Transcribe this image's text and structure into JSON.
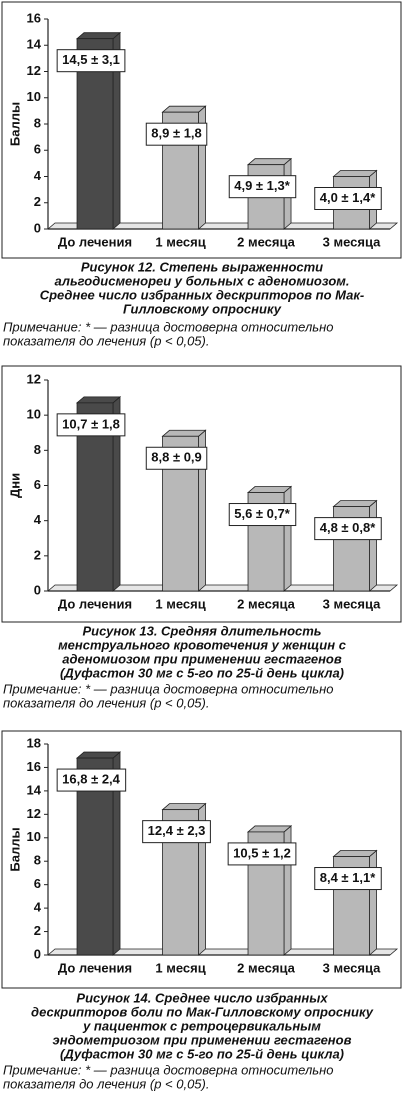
{
  "chart_data": [
    {
      "type": "bar",
      "y_label": "Баллы",
      "categories": [
        "До лечения",
        "1 месяц",
        "2 месяца",
        "3 месяца"
      ],
      "values": [
        14.5,
        8.9,
        4.9,
        4.0
      ],
      "value_labels": [
        "14,5 ± 3,1",
        "8,9 ± 1,8",
        "4,9 ± 1,3*",
        "4,0 ± 1,4*"
      ],
      "colors": [
        "#4a4a4a",
        "#b8b8b8",
        "#b8b8b8",
        "#b8b8b8"
      ],
      "ylim": [
        0,
        16
      ],
      "yticks": [
        0,
        2,
        4,
        6,
        8,
        10,
        12,
        14,
        16
      ],
      "caption": [
        "Рисунок 12. Степень выраженности",
        "альгодисменореи у больных с аденомиозом.",
        "Среднее число избранных дескрипторов по Мак-",
        "Гилловскому опроснику"
      ],
      "note": [
        "Примечание: * — разница достоверна относительно",
        "показателя до лечения (p < 0,05)."
      ]
    },
    {
      "type": "bar",
      "y_label": "Дни",
      "categories": [
        "До лечения",
        "1 месяц",
        "2 месяца",
        "3 месяца"
      ],
      "values": [
        10.7,
        8.8,
        5.6,
        4.8
      ],
      "value_labels": [
        "10,7 ± 1,8",
        "8,8 ± 0,9",
        "5,6 ± 0,7*",
        "4,8 ± 0,8*"
      ],
      "colors": [
        "#4a4a4a",
        "#b8b8b8",
        "#b8b8b8",
        "#b8b8b8"
      ],
      "ylim": [
        0,
        12
      ],
      "yticks": [
        0,
        2,
        4,
        6,
        8,
        10,
        12
      ],
      "caption": [
        "Рисунок 13. Средняя длительность",
        "менструального кровотечения у женщин с",
        "аденомиозом при применении гестагенов",
        "(Дуфастон 30 мг с 5-го по 25-й день цикла)"
      ],
      "note": [
        "Примечание: * — разница достоверна относительно",
        "показателя до лечения (p < 0,05)."
      ]
    },
    {
      "type": "bar",
      "y_label": "Баллы",
      "categories": [
        "До лечения",
        "1 месяц",
        "2 месяца",
        "3 месяца"
      ],
      "values": [
        16.8,
        12.4,
        10.5,
        8.4
      ],
      "value_labels": [
        "16,8 ± 2,4",
        "12,4 ± 2,3",
        "10,5 ± 1,2",
        "8,4 ± 1,1*"
      ],
      "colors": [
        "#4a4a4a",
        "#b8b8b8",
        "#b8b8b8",
        "#b8b8b8"
      ],
      "ylim": [
        0,
        18
      ],
      "yticks": [
        0,
        2,
        4,
        6,
        8,
        10,
        12,
        14,
        16,
        18
      ],
      "caption": [
        "Рисунок 14. Среднее число избранных",
        "дескрипторов боли по Мак-Гилловскому опроснику",
        "у пациенток с ретроцервикальным",
        "эндометриозом при применении гестагенов",
        "(Дуфастон 30 мг с 5-го по 25-й день цикла)"
      ],
      "note": [
        "Примечание: * — разница достоверна относительно",
        "показателя до лечения (p < 0,05)."
      ]
    }
  ]
}
